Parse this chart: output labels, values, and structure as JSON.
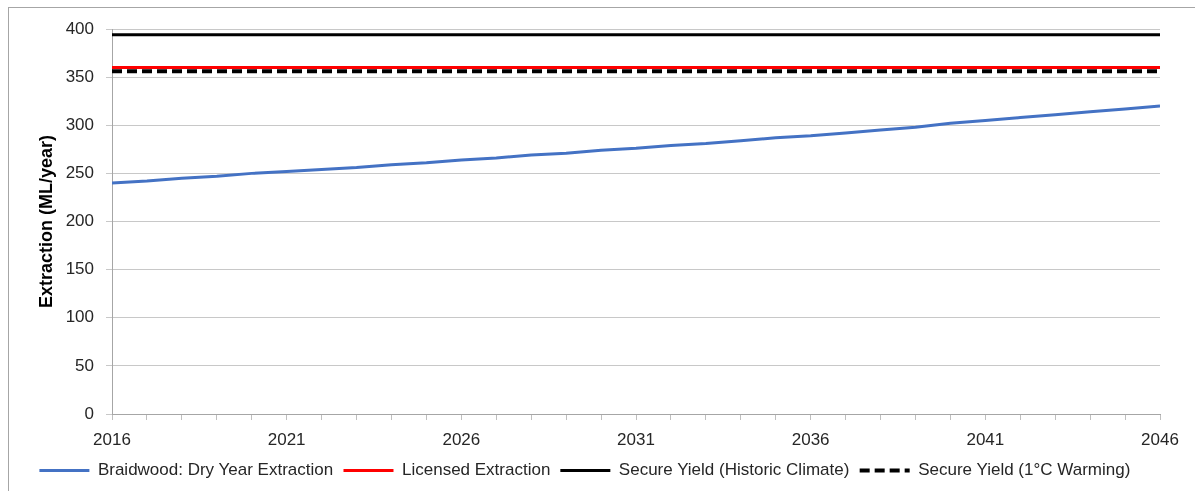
{
  "chart_data": {
    "type": "line",
    "ylabel": "Extraction (ML/year)",
    "x": [
      2016,
      2017,
      2018,
      2019,
      2020,
      2021,
      2022,
      2023,
      2024,
      2025,
      2026,
      2027,
      2028,
      2029,
      2030,
      2031,
      2032,
      2033,
      2034,
      2035,
      2036,
      2037,
      2038,
      2039,
      2040,
      2041,
      2042,
      2043,
      2044,
      2045,
      2046
    ],
    "xlim": [
      2016,
      2046
    ],
    "xticks": [
      2016,
      {
        "value": 2017,
        "label": null
      },
      {
        "value": 2018,
        "label": null
      },
      {
        "value": 2019,
        "label": null
      },
      {
        "value": 2020,
        "label": null
      },
      2021,
      {
        "value": 2022,
        "label": null
      },
      {
        "value": 2023,
        "label": null
      },
      {
        "value": 2024,
        "label": null
      },
      {
        "value": 2025,
        "label": null
      },
      2026,
      {
        "value": 2027,
        "label": null
      },
      {
        "value": 2028,
        "label": null
      },
      {
        "value": 2029,
        "label": null
      },
      {
        "value": 2030,
        "label": null
      },
      2031,
      {
        "value": 2032,
        "label": null
      },
      {
        "value": 2033,
        "label": null
      },
      {
        "value": 2034,
        "label": null
      },
      {
        "value": 2035,
        "label": null
      },
      2036,
      {
        "value": 2037,
        "label": null
      },
      {
        "value": 2038,
        "label": null
      },
      {
        "value": 2039,
        "label": null
      },
      {
        "value": 2040,
        "label": null
      },
      2041,
      {
        "value": 2042,
        "label": null
      },
      {
        "value": 2043,
        "label": null
      },
      {
        "value": 2044,
        "label": null
      },
      {
        "value": 2045,
        "label": null
      },
      2046
    ],
    "ylim": [
      0,
      400
    ],
    "yticks": [
      0,
      50,
      100,
      150,
      200,
      250,
      300,
      350,
      400
    ],
    "grid": "y",
    "legend": "bottom",
    "marker": "none",
    "series": [
      {
        "name": "Braidwood: Dry Year Extraction",
        "color": "#4472c4",
        "values": [
          240,
          242,
          245,
          247,
          250,
          252,
          254,
          256,
          259,
          261,
          264,
          266,
          269,
          271,
          274,
          276,
          279,
          281,
          284,
          287,
          289,
          292,
          295,
          298,
          302,
          305,
          308,
          311,
          314,
          317,
          320
        ]
      },
      {
        "name": "Licensed Extraction",
        "color": "#ff0000",
        "values": [
          360,
          360,
          360,
          360,
          360,
          360,
          360,
          360,
          360,
          360,
          360,
          360,
          360,
          360,
          360,
          360,
          360,
          360,
          360,
          360,
          360,
          360,
          360,
          360,
          360,
          360,
          360,
          360,
          360,
          360,
          360
        ]
      },
      {
        "name": "Secure Yield (Historic Climate)",
        "color": "#000000",
        "values": [
          394,
          394,
          394,
          394,
          394,
          394,
          394,
          394,
          394,
          394,
          394,
          394,
          394,
          394,
          394,
          394,
          394,
          394,
          394,
          394,
          394,
          394,
          394,
          394,
          394,
          394,
          394,
          394,
          394,
          394,
          394
        ]
      },
      {
        "name": "Secure Yield (1°C Warming)",
        "color": "#000000",
        "values": [
          356,
          356,
          356,
          356,
          356,
          356,
          356,
          356,
          356,
          356,
          356,
          356,
          356,
          356,
          356,
          356,
          356,
          356,
          356,
          356,
          356,
          356,
          356,
          356,
          356,
          356,
          356,
          356,
          356,
          356,
          356
        ],
        "line_style": "dashed"
      }
    ]
  }
}
